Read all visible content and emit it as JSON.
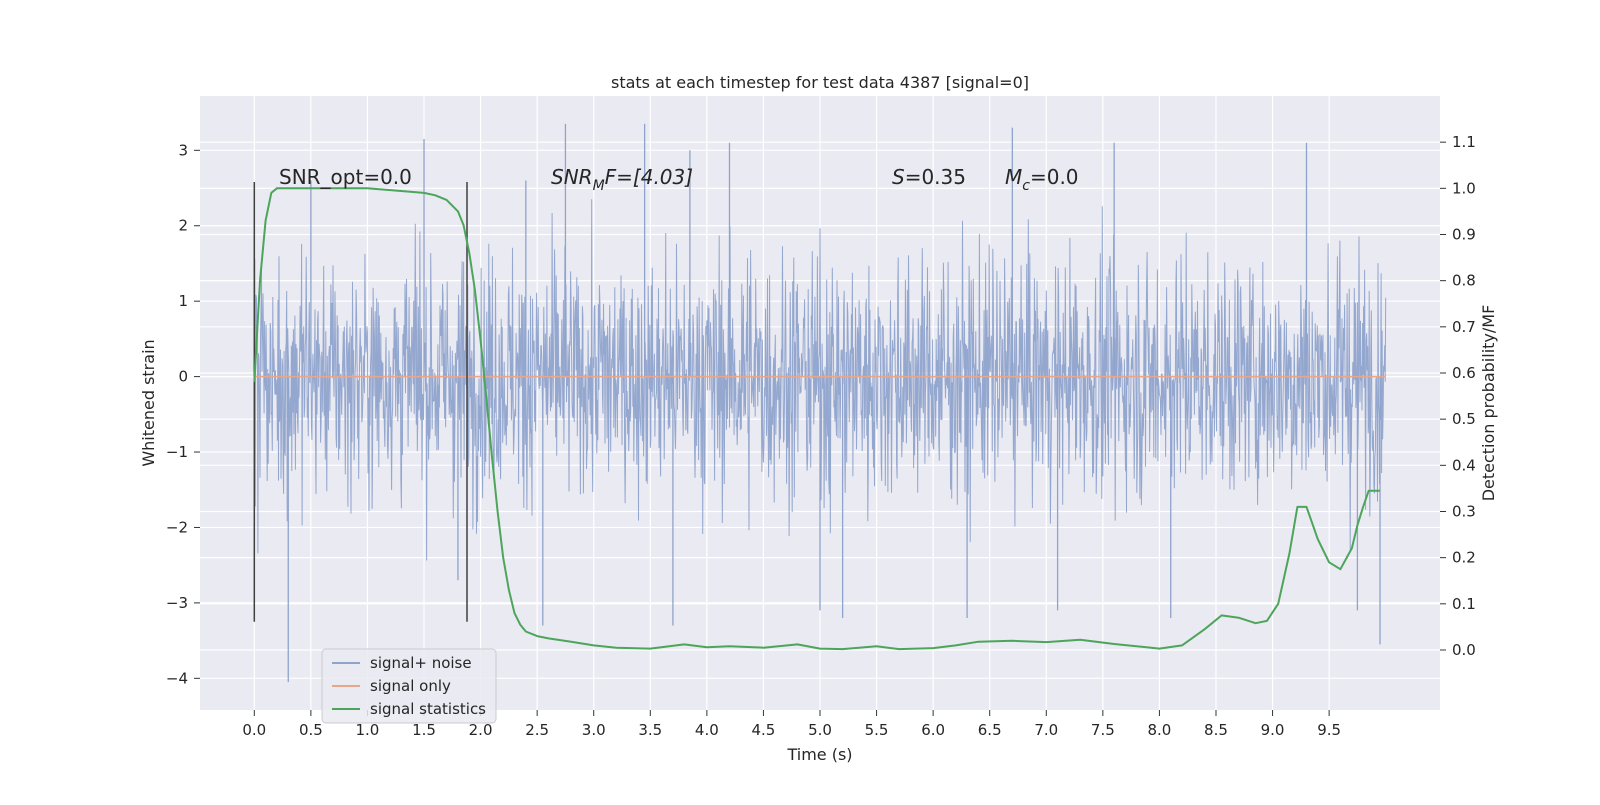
{
  "chart_data": {
    "type": "line",
    "title": "stats at each timestep for test data 4387 [signal=0]",
    "xlabel": "Time (s)",
    "ylabel_left": "Whitened strain",
    "ylabel_right": "Detection probability/MF",
    "xlim": [
      -0.48,
      10.48
    ],
    "ylim_left": [
      -4.42,
      3.72
    ],
    "ylim_right": [
      -0.13,
      1.2
    ],
    "x_ticks": [
      0.0,
      0.5,
      1.0,
      1.5,
      2.0,
      2.5,
      3.0,
      3.5,
      4.0,
      4.5,
      5.0,
      5.5,
      6.0,
      6.5,
      7.0,
      7.5,
      8.0,
      8.5,
      9.0,
      9.5
    ],
    "x_tick_labels": [
      "0.0",
      "0.5",
      "1.0",
      "1.5",
      "2.0",
      "2.5",
      "3.0",
      "3.5",
      "4.0",
      "4.5",
      "5.0",
      "5.5",
      "6.0",
      "6.5",
      "7.0",
      "7.5",
      "8.0",
      "8.5",
      "9.0",
      "9.5"
    ],
    "y_left_ticks": [
      3,
      2,
      1,
      0,
      -1,
      -2,
      -3,
      -4
    ],
    "y_left_tick_labels": [
      "3",
      "2",
      "1",
      "0",
      "−1",
      "−2",
      "−3",
      "−4"
    ],
    "y_right_ticks": [
      1.1,
      1.0,
      0.9,
      0.8,
      0.7,
      0.6,
      0.5,
      0.4,
      0.3,
      0.2,
      0.1,
      0.0
    ],
    "y_right_tick_labels": [
      "1.1",
      "1.0",
      "0.9",
      "0.8",
      "0.7",
      "0.6",
      "0.5",
      "0.4",
      "0.3",
      "0.2",
      "0.1",
      "0.0"
    ],
    "grid": true,
    "legend_position": "lower-left",
    "series": [
      {
        "name": "signal+ noise",
        "color": "#8fa3cc",
        "axis": "left",
        "kind": "noise band",
        "x_range": [
          0.0,
          10.0
        ],
        "typical_amplitude": 1.3,
        "peak_values": [
          {
            "x": 0.0,
            "y": 1.85
          },
          {
            "x": 0.3,
            "y": -4.05
          },
          {
            "x": 0.5,
            "y": 2.6
          },
          {
            "x": 1.5,
            "y": 3.15
          },
          {
            "x": 1.8,
            "y": -2.7
          },
          {
            "x": 2.4,
            "y": 2.6
          },
          {
            "x": 2.55,
            "y": -3.3
          },
          {
            "x": 2.75,
            "y": 3.35
          },
          {
            "x": 3.45,
            "y": 3.35
          },
          {
            "x": 3.7,
            "y": -3.3
          },
          {
            "x": 3.85,
            "y": 3.0
          },
          {
            "x": 4.2,
            "y": 3.1
          },
          {
            "x": 5.0,
            "y": -3.1
          },
          {
            "x": 5.2,
            "y": -3.2
          },
          {
            "x": 6.3,
            "y": -3.2
          },
          {
            "x": 6.7,
            "y": 3.3
          },
          {
            "x": 7.1,
            "y": -3.1
          },
          {
            "x": 7.6,
            "y": 3.1
          },
          {
            "x": 8.1,
            "y": -3.2
          },
          {
            "x": 9.3,
            "y": 3.1
          },
          {
            "x": 9.75,
            "y": -3.1
          },
          {
            "x": 9.95,
            "y": -3.55
          }
        ]
      },
      {
        "name": "signal only",
        "color": "#e8a68a",
        "axis": "left",
        "x": [
          0.0,
          10.0
        ],
        "y": [
          0.0,
          0.0
        ]
      },
      {
        "name": "signal statistics",
        "color": "#4ca55a",
        "axis": "right",
        "x": [
          0.0,
          0.05,
          0.1,
          0.15,
          0.2,
          0.3,
          0.5,
          1.0,
          1.5,
          1.6,
          1.7,
          1.8,
          1.85,
          1.9,
          1.95,
          2.0,
          2.05,
          2.1,
          2.15,
          2.2,
          2.25,
          2.3,
          2.35,
          2.4,
          2.5,
          2.6,
          2.8,
          3.0,
          3.2,
          3.5,
          3.8,
          4.0,
          4.2,
          4.5,
          4.8,
          5.0,
          5.2,
          5.5,
          5.7,
          6.0,
          6.2,
          6.4,
          6.7,
          7.0,
          7.3,
          7.6,
          8.0,
          8.2,
          8.4,
          8.55,
          8.7,
          8.85,
          8.95,
          9.05,
          9.15,
          9.22,
          9.3,
          9.4,
          9.5,
          9.6,
          9.7,
          9.75,
          9.8,
          9.85,
          9.9,
          9.95
        ],
        "y": [
          0.58,
          0.8,
          0.93,
          0.99,
          1.0,
          1.0,
          1.0,
          1.0,
          0.99,
          0.985,
          0.975,
          0.95,
          0.92,
          0.86,
          0.78,
          0.67,
          0.55,
          0.42,
          0.3,
          0.2,
          0.13,
          0.08,
          0.055,
          0.04,
          0.03,
          0.025,
          0.018,
          0.01,
          0.005,
          0.003,
          0.012,
          0.006,
          0.008,
          0.005,
          0.012,
          0.003,
          0.002,
          0.008,
          0.002,
          0.004,
          0.01,
          0.018,
          0.02,
          0.017,
          0.022,
          0.013,
          0.003,
          0.01,
          0.045,
          0.075,
          0.07,
          0.058,
          0.063,
          0.1,
          0.21,
          0.31,
          0.31,
          0.24,
          0.19,
          0.175,
          0.22,
          0.27,
          0.31,
          0.345,
          0.345,
          0.345
        ]
      }
    ],
    "vertical_markers": [
      {
        "x": 0.0,
        "y_range": [
          -3.25,
          2.58
        ],
        "color": "#404040"
      },
      {
        "x": 1.88,
        "y_range": [
          -3.25,
          2.58
        ],
        "color": "#404040"
      }
    ],
    "annotations": {
      "snr_opt": "SNR_opt=0.0",
      "snr_mf_base": "SNR",
      "snr_mf_sub": "M",
      "snr_mf_tail": "F=[4.03]",
      "s_symbol": "S",
      "s_value": "=0.35",
      "mc_symbol": "M",
      "mc_sub": "c",
      "mc_value": "=0.0"
    }
  },
  "colors": {
    "plot_background": "#eaeaf2",
    "grid": "#ffffff"
  }
}
